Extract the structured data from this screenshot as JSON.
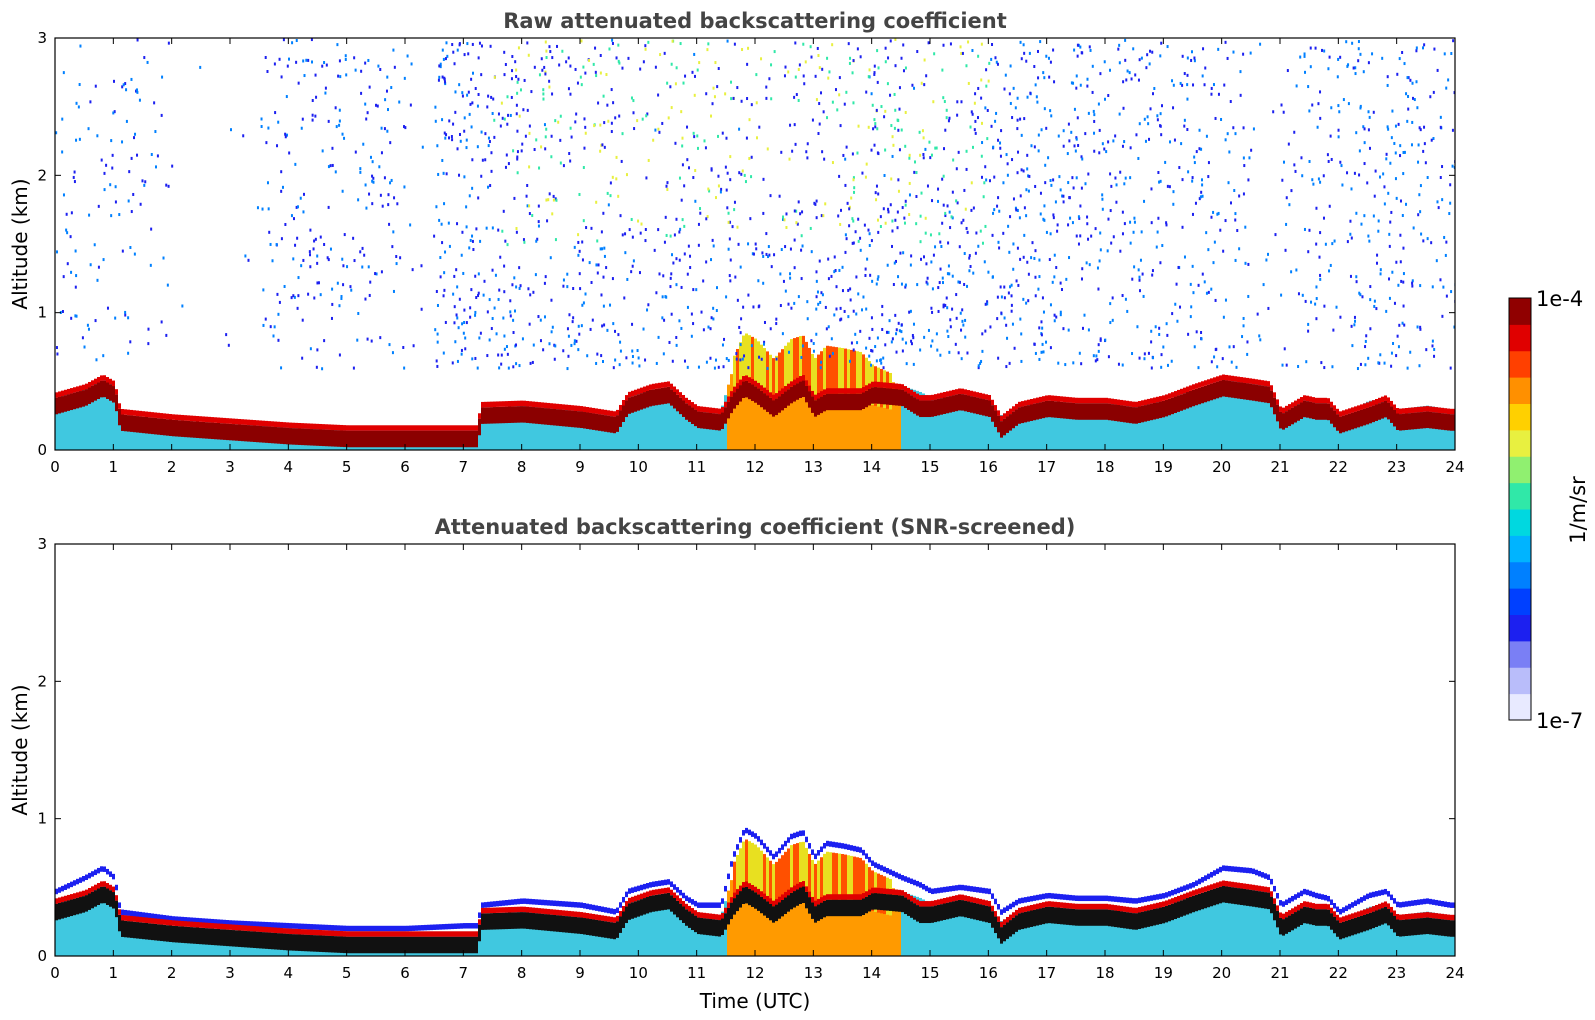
{
  "chart_data": [
    {
      "type": "heatmap",
      "title": "Raw attenuated backscattering coefficient",
      "xlabel": "",
      "ylabel": "Altitude (km)",
      "xlim": [
        0,
        24
      ],
      "ylim": [
        0,
        3
      ],
      "xticks": [
        "0",
        "1",
        "2",
        "3",
        "4",
        "5",
        "6",
        "7",
        "8",
        "9",
        "10",
        "11",
        "12",
        "13",
        "14",
        "15",
        "16",
        "17",
        "18",
        "19",
        "20",
        "21",
        "22",
        "23",
        "24"
      ],
      "yticks": [
        "0",
        "1",
        "2",
        "3"
      ],
      "noise_profile": [
        0.3,
        0.3,
        0.28,
        0.22,
        0.08,
        0.06,
        0.05,
        0.45,
        0.55,
        0.4,
        0.35,
        0.38,
        0.1,
        0.75,
        0.75,
        0.72,
        0.7,
        0.62,
        0.6,
        0.58,
        0.55,
        0.52,
        0.5,
        0.48,
        0.45,
        0.52,
        0.75,
        0.85,
        0.85,
        0.8,
        0.78,
        0.78,
        0.72,
        0.7,
        0.7,
        0.65,
        0.6,
        0.55,
        0.48,
        0.45,
        0.4,
        0.1,
        0.35,
        0.55,
        0.55,
        0.6,
        0.55,
        0.5
      ],
      "bottom_panel_clean": false
    },
    {
      "type": "heatmap",
      "title": "Attenuated backscattering coefficient (SNR-screened)",
      "xlabel": "Time (UTC)",
      "ylabel": "Altitude (km)",
      "xlim": [
        0,
        24
      ],
      "ylim": [
        0,
        3
      ],
      "xticks": [
        "0",
        "1",
        "2",
        "3",
        "4",
        "5",
        "6",
        "7",
        "8",
        "9",
        "10",
        "11",
        "12",
        "13",
        "14",
        "15",
        "16",
        "17",
        "18",
        "19",
        "20",
        "21",
        "22",
        "23",
        "24"
      ],
      "yticks": [
        "0",
        "1",
        "2",
        "3"
      ],
      "bottom_panel_clean": true
    }
  ],
  "layer_top_km": {
    "t": [
      0,
      0.5,
      0.8,
      1.0,
      1.1,
      2,
      3,
      4,
      5,
      6,
      7,
      7.2,
      7.3,
      8,
      9,
      9.6,
      9.8,
      10.2,
      10.5,
      10.8,
      11,
      11.4,
      11.6,
      11.8,
      12,
      12.3,
      12.6,
      12.8,
      13,
      13.2,
      13.5,
      13.8,
      14,
      14.5,
      14.8,
      15,
      15.5,
      16,
      16.2,
      16.5,
      17,
      17.5,
      18,
      18.5,
      19,
      19.5,
      20,
      20.5,
      20.8,
      21,
      21.4,
      21.6,
      21.8,
      22,
      22.5,
      22.8,
      23,
      23.5,
      23.9
    ],
    "km": [
      0.45,
      0.55,
      0.62,
      0.55,
      0.3,
      0.25,
      0.22,
      0.2,
      0.18,
      0.18,
      0.2,
      0.2,
      0.35,
      0.38,
      0.35,
      0.3,
      0.45,
      0.5,
      0.52,
      0.4,
      0.35,
      0.35,
      0.7,
      0.9,
      0.85,
      0.7,
      0.85,
      0.88,
      0.7,
      0.8,
      0.78,
      0.75,
      0.65,
      0.55,
      0.5,
      0.45,
      0.48,
      0.45,
      0.3,
      0.38,
      0.42,
      0.4,
      0.4,
      0.38,
      0.42,
      0.5,
      0.62,
      0.6,
      0.55,
      0.35,
      0.45,
      0.42,
      0.4,
      0.3,
      0.42,
      0.45,
      0.35,
      0.38,
      0.35
    ]
  },
  "layer_peak_km": {
    "t": [
      0,
      0.5,
      0.8,
      1.0,
      1.1,
      2,
      3,
      4,
      5,
      6,
      7,
      7.2,
      7.3,
      8,
      9,
      9.6,
      9.8,
      10.2,
      10.5,
      10.8,
      11,
      11.4,
      11.6,
      11.8,
      12,
      12.3,
      12.6,
      12.8,
      13,
      13.2,
      13.5,
      13.8,
      14,
      14.5,
      14.8,
      15,
      15.5,
      16,
      16.2,
      16.5,
      17,
      17.5,
      18,
      18.5,
      19,
      19.5,
      20,
      20.5,
      20.8,
      21,
      21.4,
      21.6,
      21.8,
      22,
      22.5,
      22.8,
      23,
      23.5,
      23.9
    ],
    "km": [
      0.32,
      0.38,
      0.45,
      0.4,
      0.2,
      0.16,
      0.13,
      0.1,
      0.08,
      0.08,
      0.08,
      0.08,
      0.25,
      0.26,
      0.22,
      0.18,
      0.32,
      0.38,
      0.4,
      0.28,
      0.22,
      0.2,
      0.35,
      0.45,
      0.4,
      0.3,
      0.4,
      0.45,
      0.3,
      0.35,
      0.35,
      0.35,
      0.4,
      0.38,
      0.3,
      0.3,
      0.35,
      0.3,
      0.15,
      0.25,
      0.3,
      0.28,
      0.28,
      0.25,
      0.3,
      0.38,
      0.45,
      0.42,
      0.4,
      0.2,
      0.3,
      0.28,
      0.28,
      0.18,
      0.25,
      0.3,
      0.2,
      0.22,
      0.2
    ]
  },
  "colorbar": {
    "label": "1/m/sr",
    "max_label": "1e-4",
    "min_label": "1e-7",
    "colors": [
      "#e8eaff",
      "#b9bdfa",
      "#7a7ff5",
      "#1c20f0",
      "#0040ff",
      "#0080ff",
      "#00b4ff",
      "#00d8e0",
      "#30e8a8",
      "#90f070",
      "#e8f040",
      "#ffd000",
      "#ff9000",
      "#ff4000",
      "#e00000",
      "#900000"
    ]
  }
}
